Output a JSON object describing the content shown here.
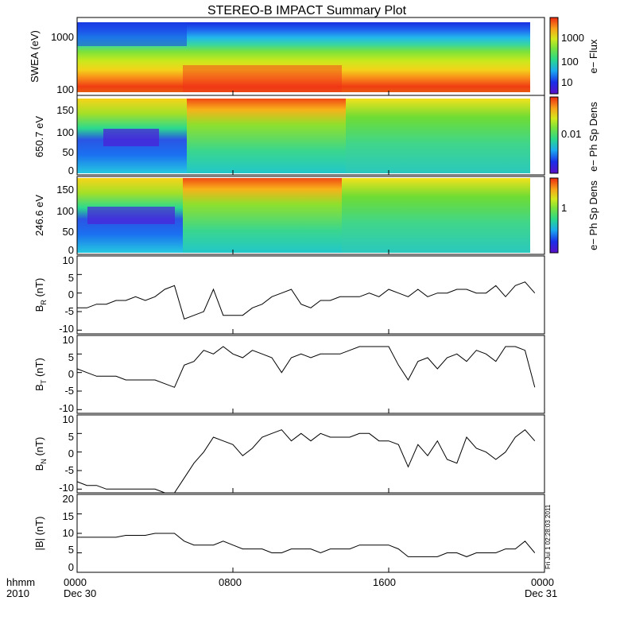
{
  "title": "STEREO-B IMPACT Summary Plot",
  "x_axis": {
    "row1": [
      "0000",
      "0800",
      "1600",
      "0000"
    ],
    "row2": [
      "Dec 30",
      "",
      "",
      "Dec 31"
    ],
    "left_label_1": "hhmm",
    "left_label_2": "2010",
    "range_hours": [
      0,
      24
    ]
  },
  "stamp": "Fri Jul 1 02:28:03 2011",
  "chart_data": [
    {
      "type": "heatmap",
      "panel": "swea",
      "ylabel": "SWEA (eV)",
      "y_scale": "log",
      "ylim": [
        100,
        1700
      ],
      "yticks": [
        "1000",
        "100"
      ],
      "colorbar_label": "e− Flux",
      "colorbar_scale": "log",
      "colorbar_ticks": [
        "1000",
        "100",
        "10"
      ]
    },
    {
      "type": "heatmap",
      "panel": "pad650",
      "ylabel": "650.7 eV",
      "ylim": [
        0,
        180
      ],
      "yticks": [
        "150",
        "100",
        "50",
        "0"
      ],
      "colorbar_label": "e− Ph Sp Dens",
      "colorbar_scale": "log",
      "colorbar_ticks": [
        "0.01"
      ]
    },
    {
      "type": "heatmap",
      "panel": "pad246",
      "ylabel": "246.6 eV",
      "ylim": [
        0,
        180
      ],
      "yticks": [
        "150",
        "100",
        "50",
        "0"
      ],
      "colorbar_label": "e− Ph Sp Dens",
      "colorbar_scale": "log",
      "colorbar_ticks": [
        "1"
      ]
    },
    {
      "type": "line",
      "panel": "br",
      "ylabel_main": "B",
      "ylabel_sub": "R",
      "ylabel_unit": " (nT)",
      "ylim": [
        -11,
        10
      ],
      "yticks": [
        "10",
        "5",
        "0",
        "-5",
        "-10"
      ],
      "x": [
        0,
        0.5,
        1,
        1.5,
        2,
        2.5,
        3,
        3.5,
        4,
        4.5,
        5,
        5.5,
        6,
        6.5,
        7,
        7.5,
        8,
        8.5,
        9,
        9.5,
        10,
        10.5,
        11,
        11.5,
        12,
        12.5,
        13,
        13.5,
        14,
        14.5,
        15,
        15.5,
        16,
        16.5,
        17,
        17.5,
        18,
        18.5,
        19,
        19.5,
        20,
        20.5,
        21,
        21.5,
        22,
        22.5,
        23,
        23.5
      ],
      "y": [
        -4,
        -4,
        -3,
        -3,
        -2,
        -2,
        -1,
        -2,
        -1,
        1,
        2,
        -7,
        -6,
        -5,
        1,
        -6,
        -6,
        -6,
        -4,
        -3,
        -1,
        0,
        1,
        -3,
        -4,
        -2,
        -2,
        -1,
        -1,
        -1,
        0,
        -1,
        1,
        0,
        -1,
        1,
        -1,
        0,
        0,
        1,
        1,
        0,
        0,
        2,
        -1,
        2,
        3,
        0
      ]
    },
    {
      "type": "line",
      "panel": "bt",
      "ylabel_main": "B",
      "ylabel_sub": "T",
      "ylabel_unit": " (nT)",
      "ylim": [
        -11,
        10
      ],
      "yticks": [
        "10",
        "5",
        "0",
        "-5",
        "-10"
      ],
      "x": [
        0,
        0.5,
        1,
        1.5,
        2,
        2.5,
        3,
        3.5,
        4,
        4.5,
        5,
        5.5,
        6,
        6.5,
        7,
        7.5,
        8,
        8.5,
        9,
        9.5,
        10,
        10.5,
        11,
        11.5,
        12,
        12.5,
        13,
        13.5,
        14,
        14.5,
        15,
        15.5,
        16,
        16.5,
        17,
        17.5,
        18,
        18.5,
        19,
        19.5,
        20,
        20.5,
        21,
        21.5,
        22,
        22.5,
        23,
        23.5
      ],
      "y": [
        1,
        0,
        -1,
        -1,
        -1,
        -2,
        -2,
        -2,
        -2,
        -3,
        -4,
        2,
        3,
        6,
        5,
        7,
        5,
        4,
        6,
        5,
        4,
        0,
        4,
        5,
        4,
        5,
        5,
        5,
        6,
        7,
        7,
        7,
        7,
        2,
        -2,
        3,
        4,
        1,
        4,
        5,
        3,
        6,
        5,
        3,
        7,
        7,
        6,
        -4
      ]
    },
    {
      "type": "line",
      "panel": "bn",
      "ylabel_main": "B",
      "ylabel_sub": "N",
      "ylabel_unit": " (nT)",
      "ylim": [
        -11,
        10
      ],
      "yticks": [
        "10",
        "5",
        "0",
        "-5",
        "-10"
      ],
      "x": [
        0,
        0.5,
        1,
        1.5,
        2,
        2.5,
        3,
        3.5,
        4,
        4.5,
        5,
        5.5,
        6,
        6.5,
        7,
        7.5,
        8,
        8.5,
        9,
        9.5,
        10,
        10.5,
        11,
        11.5,
        12,
        12.5,
        13,
        13.5,
        14,
        14.5,
        15,
        15.5,
        16,
        16.5,
        17,
        17.5,
        18,
        18.5,
        19,
        19.5,
        20,
        20.5,
        21,
        21.5,
        22,
        22.5,
        23,
        23.5
      ],
      "y": [
        -8,
        -9,
        -9,
        -10,
        -10,
        -10,
        -10,
        -10,
        -10,
        -11,
        -11,
        -7,
        -3,
        0,
        4,
        3,
        2,
        -1,
        1,
        4,
        5,
        6,
        3,
        5,
        3,
        5,
        4,
        4,
        4,
        5,
        5,
        3,
        3,
        2,
        -4,
        2,
        -1,
        3,
        -2,
        -3,
        4,
        1,
        0,
        -2,
        0,
        4,
        6,
        3
      ]
    },
    {
      "type": "line",
      "panel": "bmag",
      "ylabel": "|B| (nT)",
      "ylim": [
        0,
        20
      ],
      "yticks": [
        "20",
        "15",
        "10",
        "5",
        "0"
      ],
      "x": [
        0,
        0.5,
        1,
        1.5,
        2,
        2.5,
        3,
        3.5,
        4,
        4.5,
        5,
        5.5,
        6,
        6.5,
        7,
        7.5,
        8,
        8.5,
        9,
        9.5,
        10,
        10.5,
        11,
        11.5,
        12,
        12.5,
        13,
        13.5,
        14,
        14.5,
        15,
        15.5,
        16,
        16.5,
        17,
        17.5,
        18,
        18.5,
        19,
        19.5,
        20,
        20.5,
        21,
        21.5,
        22,
        22.5,
        23,
        23.5
      ],
      "y": [
        9,
        9,
        9,
        9,
        9,
        9.5,
        9.5,
        9.5,
        10,
        10,
        10,
        8,
        7,
        7,
        7,
        8,
        7,
        6,
        6,
        6,
        5,
        5,
        6,
        6,
        6,
        5,
        6,
        6,
        6,
        7,
        7,
        7,
        7,
        6,
        4,
        4,
        4,
        4,
        5,
        5,
        4,
        5,
        5,
        5,
        6,
        6,
        8,
        5
      ]
    }
  ]
}
